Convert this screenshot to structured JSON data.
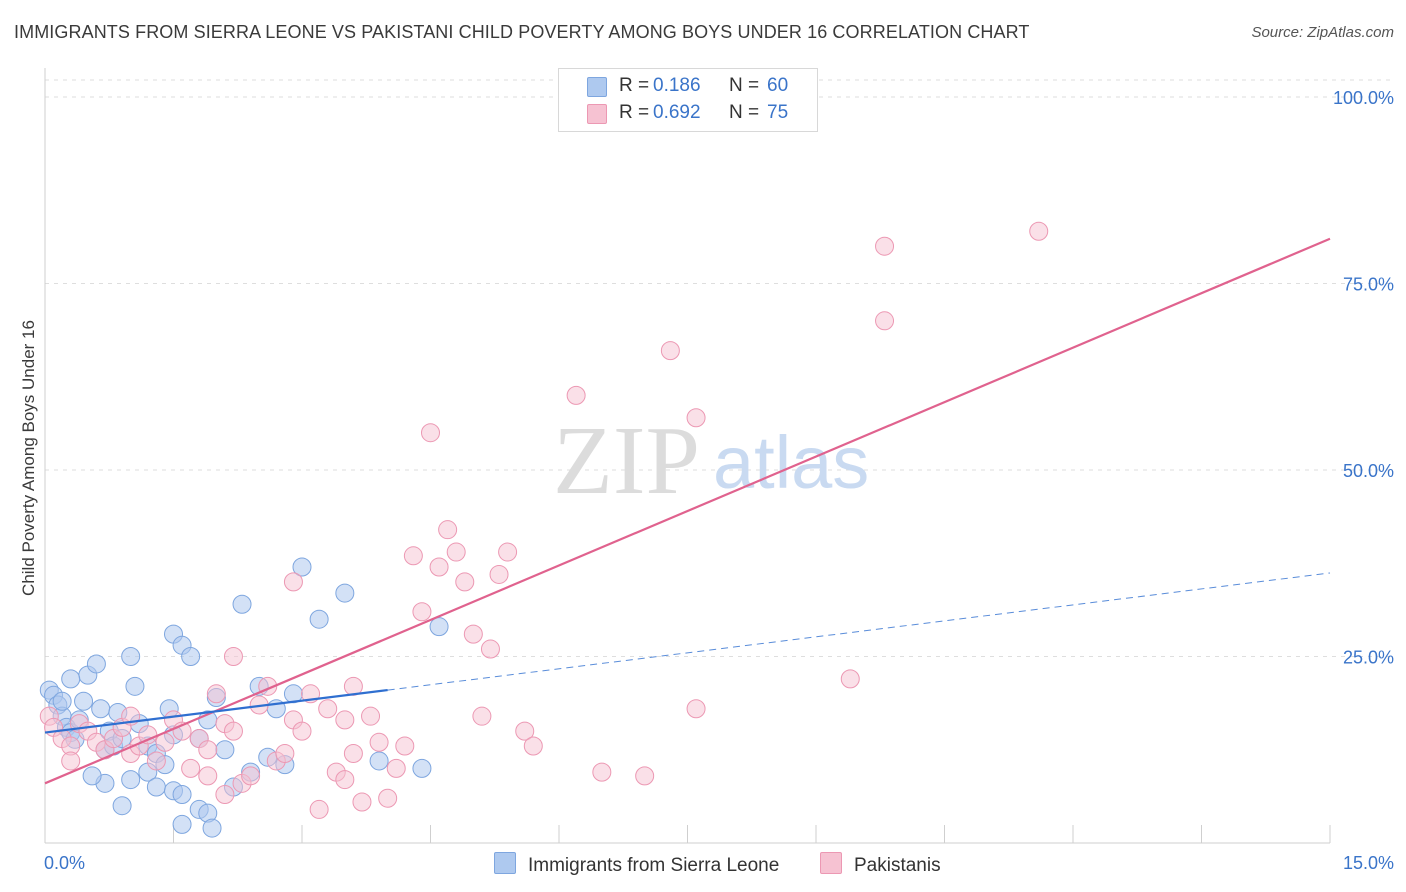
{
  "title": "IMMIGRANTS FROM SIERRA LEONE VS PAKISTANI CHILD POVERTY AMONG BOYS UNDER 16 CORRELATION CHART",
  "source": "Source: ZipAtlas.com",
  "watermark": "ZIPatlas",
  "legend": {
    "rows": [
      {
        "r_label": "R =",
        "r_value": "0.186",
        "n_label": "N =",
        "n_value": "60"
      },
      {
        "r_label": "R =",
        "r_value": "0.692",
        "n_label": "N =",
        "n_value": "75"
      }
    ]
  },
  "bottom_legend": [
    "Immigrants from Sierra Leone",
    "Pakistanis"
  ],
  "colors": {
    "blue_fill": "#aec9ef",
    "blue_stroke": "#7ea6df",
    "blue_line": "#2f6fd0",
    "pink_fill": "#f6c2d2",
    "pink_stroke": "#ec98b3",
    "pink_line": "#e0628e",
    "tick_text": "#3a74c9"
  },
  "chart_data": {
    "type": "scatter",
    "title": "IMMIGRANTS FROM SIERRA LEONE VS PAKISTANI CHILD POVERTY AMONG BOYS UNDER 16 CORRELATION CHART",
    "xlabel": "",
    "ylabel": "Child Poverty Among Boys Under 16",
    "xlim": [
      0,
      15
    ],
    "ylim": [
      0,
      100
    ],
    "x_tick_labels": [
      "0.0%",
      "15.0%"
    ],
    "y_ticks": [
      25,
      50,
      75,
      100
    ],
    "y_tick_labels": [
      "25.0%",
      "50.0%",
      "75.0%",
      "100.0%"
    ],
    "grid": true,
    "legend_position": "top-center",
    "series": [
      {
        "name": "Immigrants from Sierra Leone",
        "color": "#aec9ef",
        "points": [
          [
            0.05,
            20.5
          ],
          [
            0.1,
            19.8
          ],
          [
            0.15,
            18.5
          ],
          [
            0.2,
            17.0
          ],
          [
            0.25,
            15.5
          ],
          [
            0.3,
            14.8
          ],
          [
            0.35,
            13.9
          ],
          [
            0.4,
            16.5
          ],
          [
            0.45,
            19.0
          ],
          [
            0.5,
            22.5
          ],
          [
            0.6,
            24.0
          ],
          [
            0.65,
            18.0
          ],
          [
            0.7,
            12.5
          ],
          [
            0.75,
            15.0
          ],
          [
            0.8,
            13.0
          ],
          [
            0.85,
            17.5
          ],
          [
            0.9,
            14.0
          ],
          [
            1.0,
            25.0
          ],
          [
            1.05,
            21.0
          ],
          [
            1.1,
            16.0
          ],
          [
            1.2,
            13.0
          ],
          [
            1.3,
            12.0
          ],
          [
            1.4,
            10.5
          ],
          [
            1.45,
            18.0
          ],
          [
            1.5,
            14.5
          ],
          [
            1.2,
            9.5
          ],
          [
            1.3,
            7.5
          ],
          [
            1.0,
            8.5
          ],
          [
            0.7,
            8.0
          ],
          [
            0.9,
            5.0
          ],
          [
            1.5,
            7.0
          ],
          [
            1.6,
            6.5
          ],
          [
            1.8,
            4.5
          ],
          [
            1.5,
            28.0
          ],
          [
            1.6,
            26.5
          ],
          [
            1.7,
            25.0
          ],
          [
            1.8,
            14.0
          ],
          [
            1.9,
            16.5
          ],
          [
            2.0,
            19.5
          ],
          [
            2.1,
            12.5
          ],
          [
            2.2,
            7.5
          ],
          [
            2.3,
            32.0
          ],
          [
            2.4,
            9.5
          ],
          [
            2.5,
            21.0
          ],
          [
            2.6,
            11.5
          ],
          [
            2.7,
            18.0
          ],
          [
            2.8,
            10.5
          ],
          [
            2.9,
            20.0
          ],
          [
            3.0,
            37.0
          ],
          [
            3.2,
            30.0
          ],
          [
            3.5,
            33.5
          ],
          [
            3.9,
            11.0
          ],
          [
            4.4,
            10.0
          ],
          [
            4.6,
            29.0
          ],
          [
            0.3,
            22.0
          ],
          [
            0.55,
            9.0
          ],
          [
            1.6,
            2.5
          ],
          [
            1.9,
            4.0
          ],
          [
            1.95,
            2.0
          ],
          [
            0.2,
            19.0
          ]
        ],
        "trend": {
          "x": [
            0,
            4
          ],
          "y": [
            14.8,
            20.5
          ]
        },
        "trend_extension": {
          "x": [
            4,
            15
          ],
          "y": [
            20.5,
            36.2
          ]
        }
      },
      {
        "name": "Pakistanis",
        "color": "#f6c2d2",
        "points": [
          [
            0.05,
            17.0
          ],
          [
            0.1,
            15.5
          ],
          [
            0.2,
            14.0
          ],
          [
            0.3,
            13.0
          ],
          [
            0.4,
            16.0
          ],
          [
            0.5,
            15.0
          ],
          [
            0.6,
            13.5
          ],
          [
            0.7,
            12.5
          ],
          [
            0.8,
            14.0
          ],
          [
            0.9,
            15.5
          ],
          [
            1.0,
            12.0
          ],
          [
            1.1,
            13.0
          ],
          [
            1.2,
            14.5
          ],
          [
            1.3,
            11.0
          ],
          [
            1.4,
            13.5
          ],
          [
            1.5,
            16.5
          ],
          [
            1.6,
            15.0
          ],
          [
            1.7,
            10.0
          ],
          [
            1.8,
            14.0
          ],
          [
            1.9,
            12.5
          ],
          [
            2.0,
            20.0
          ],
          [
            2.1,
            16.0
          ],
          [
            2.2,
            15.0
          ],
          [
            2.3,
            8.0
          ],
          [
            2.4,
            9.0
          ],
          [
            2.5,
            18.5
          ],
          [
            2.6,
            21.0
          ],
          [
            2.7,
            11.0
          ],
          [
            2.8,
            12.0
          ],
          [
            2.9,
            16.5
          ],
          [
            3.0,
            15.0
          ],
          [
            3.1,
            20.0
          ],
          [
            3.2,
            4.5
          ],
          [
            3.3,
            18.0
          ],
          [
            3.4,
            9.5
          ],
          [
            3.5,
            16.5
          ],
          [
            3.6,
            12.0
          ],
          [
            3.7,
            5.5
          ],
          [
            3.8,
            17.0
          ],
          [
            3.9,
            13.5
          ],
          [
            4.0,
            6.0
          ],
          [
            4.1,
            10.0
          ],
          [
            4.2,
            13.0
          ],
          [
            4.3,
            38.5
          ],
          [
            4.4,
            31.0
          ],
          [
            4.5,
            55.0
          ],
          [
            4.6,
            37.0
          ],
          [
            4.7,
            42.0
          ],
          [
            4.8,
            39.0
          ],
          [
            4.9,
            35.0
          ],
          [
            5.0,
            28.0
          ],
          [
            5.1,
            17.0
          ],
          [
            5.2,
            26.0
          ],
          [
            5.3,
            36.0
          ],
          [
            5.4,
            39.0
          ],
          [
            5.6,
            15.0
          ],
          [
            5.7,
            13.0
          ],
          [
            6.2,
            60.0
          ],
          [
            6.5,
            9.5
          ],
          [
            7.0,
            9.0
          ],
          [
            7.3,
            66.0
          ],
          [
            7.6,
            57.0
          ],
          [
            7.6,
            18.0
          ],
          [
            9.4,
            22.0
          ],
          [
            9.8,
            80.0
          ],
          [
            9.8,
            70.0
          ],
          [
            11.6,
            82.0
          ],
          [
            2.9,
            35.0
          ],
          [
            1.9,
            9.0
          ],
          [
            2.1,
            6.5
          ],
          [
            0.3,
            11.0
          ],
          [
            1.0,
            17.0
          ],
          [
            2.2,
            25.0
          ],
          [
            3.6,
            21.0
          ],
          [
            3.5,
            8.5
          ]
        ],
        "trend": {
          "x": [
            0,
            15
          ],
          "y": [
            8.0,
            81.0
          ]
        }
      }
    ]
  }
}
